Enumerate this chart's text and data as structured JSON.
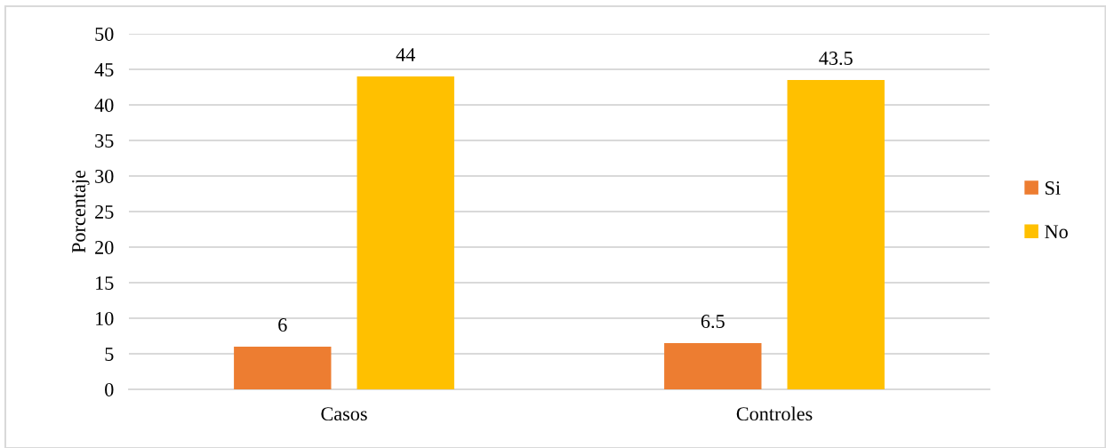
{
  "chart_data": {
    "type": "bar",
    "ylabel": "Porcentaje",
    "categories": [
      "Casos",
      "Controles"
    ],
    "series": [
      {
        "name": "Si",
        "color": "#ed7d31",
        "values": [
          6,
          6.5
        ]
      },
      {
        "name": "No",
        "color": "#ffc000",
        "values": [
          44,
          43.5
        ]
      }
    ],
    "ylim": [
      0,
      50
    ],
    "yticks": [
      0,
      5,
      10,
      15,
      20,
      25,
      30,
      35,
      40,
      45,
      50
    ],
    "grid": "y",
    "legend": "right",
    "data_labels": true
  }
}
